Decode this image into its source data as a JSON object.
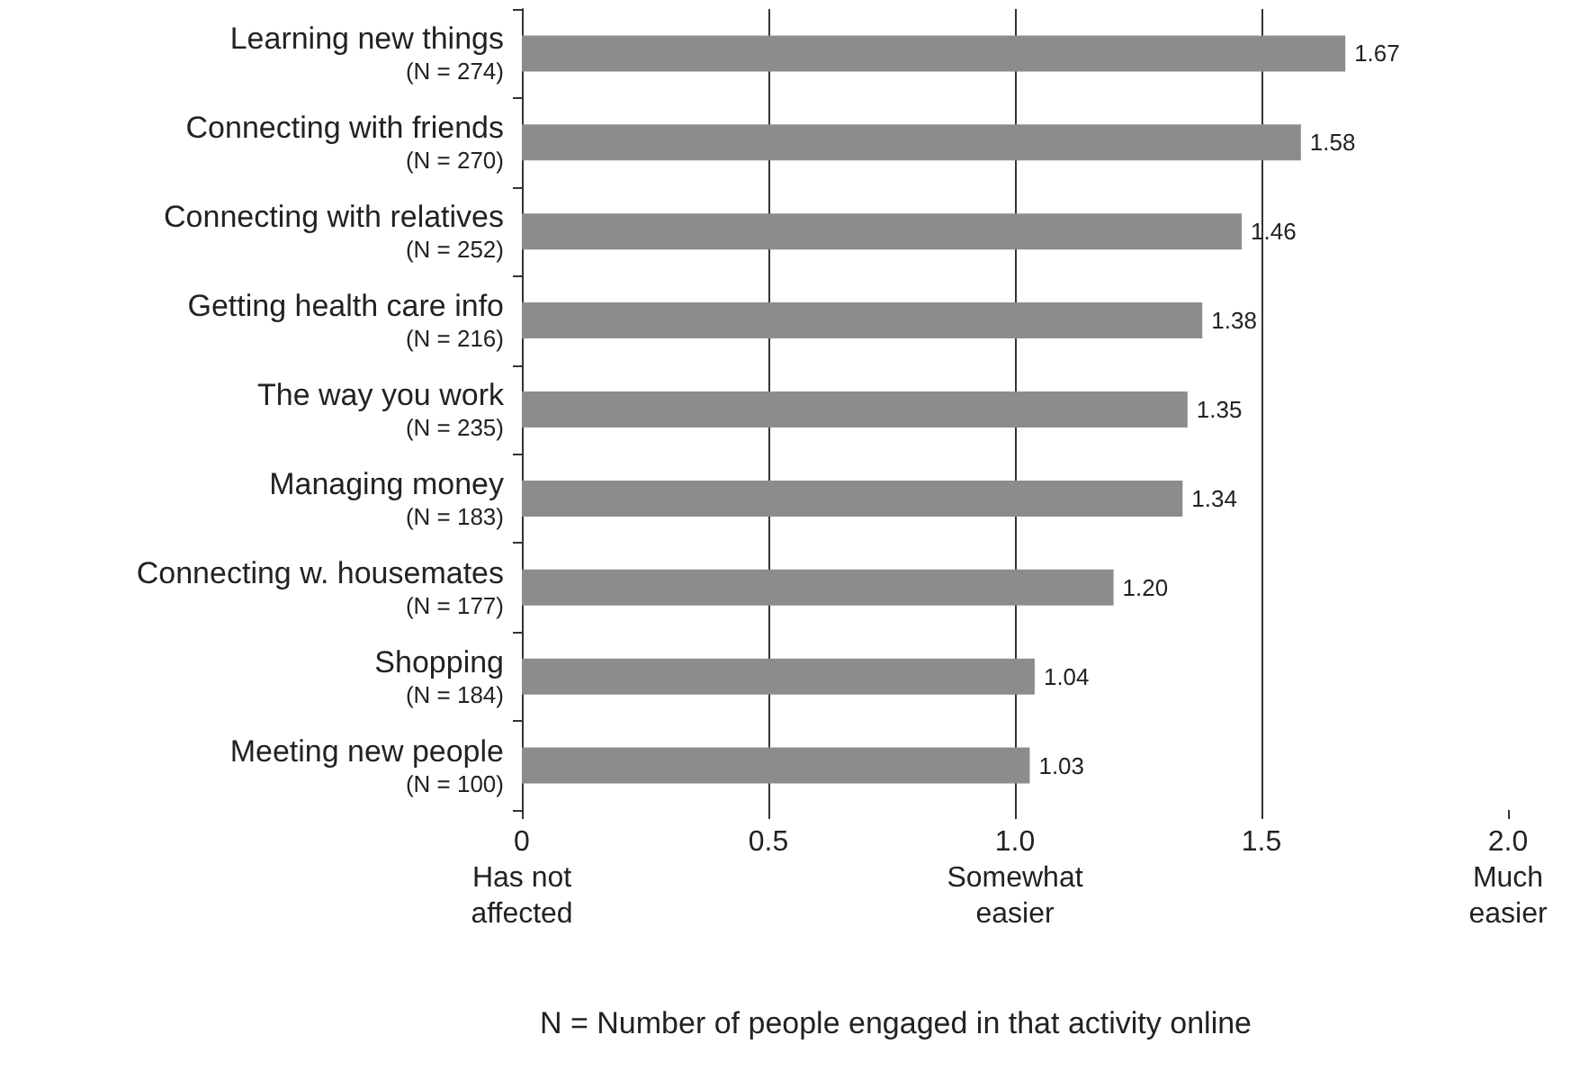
{
  "chart_data": {
    "type": "bar",
    "orientation": "horizontal",
    "categories": [
      "Learning new things\n(N = 274)",
      "Connecting with friends\n(N = 270)",
      "Connecting with relatives\n(N = 252)",
      "Getting health care info\n(N = 216)",
      "The way you work\n(N = 235)",
      "Managing money\n(N = 183)",
      "Connecting w. housemates\n(N = 177)",
      "Shopping\n(N = 184)",
      "Meeting new people\n(N = 100)"
    ],
    "values": [
      1.67,
      1.58,
      1.46,
      1.38,
      1.35,
      1.34,
      1.2,
      1.04,
      1.03
    ],
    "value_labels": [
      "1.67",
      "1.58",
      "1.46",
      "1.38",
      "1.35",
      "1.34",
      "1.20",
      "1.04",
      "1.03"
    ],
    "color": "#8c8c8c",
    "xlim": [
      0,
      2
    ],
    "xticks": [
      {
        "value": 0,
        "label": "0\nHas not\naffected"
      },
      {
        "value": 0.5,
        "label": "0.5"
      },
      {
        "value": 1,
        "label": "1.0\nSomewhat\neasier"
      },
      {
        "value": 1.5,
        "label": "1.5"
      },
      {
        "value": 2,
        "label": "2.0\nMuch\neasier"
      }
    ],
    "grid": "x",
    "annotations": [
      "N = Number of people engaged in that activity online"
    ]
  }
}
